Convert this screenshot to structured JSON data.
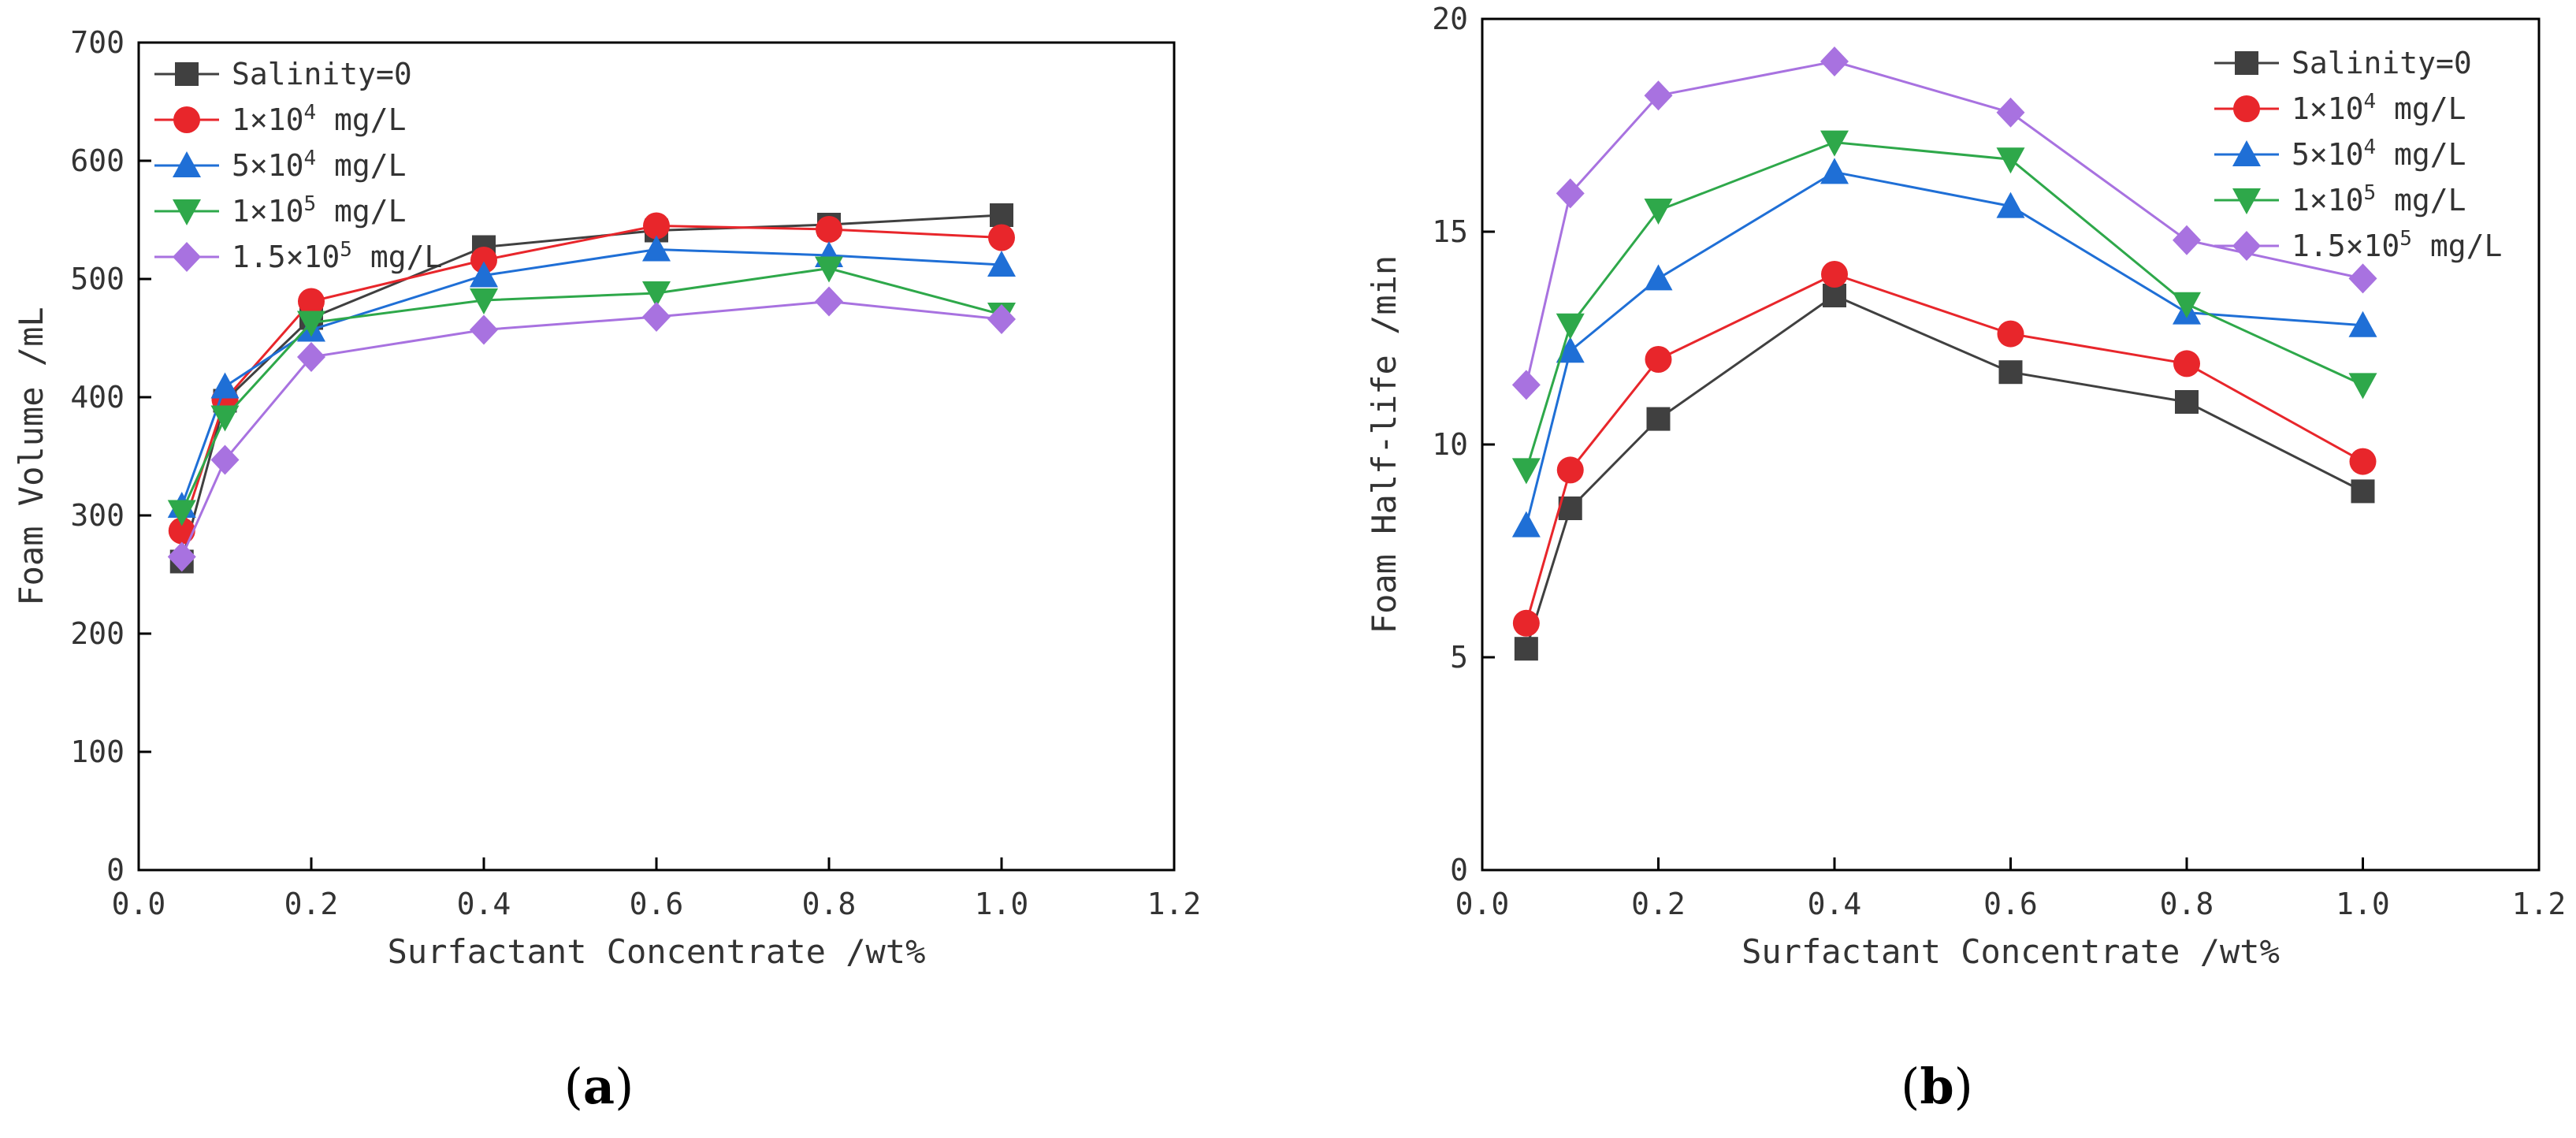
{
  "chart_data": [
    {
      "type": "line",
      "xlabel": "Surfactant Concentrate /wt%",
      "ylabel": "Foam Volume /mL",
      "xlim": [
        0.0,
        1.2
      ],
      "ylim": [
        0,
        700
      ],
      "x_ticks": [
        0.0,
        0.2,
        0.4,
        0.6,
        0.8,
        1.0,
        1.2
      ],
      "x_tick_labels": [
        "0.0",
        "0.2",
        "0.4",
        "0.6",
        "0.8",
        "1.0",
        "1.2"
      ],
      "y_ticks": [
        0,
        100,
        200,
        300,
        400,
        500,
        600,
        700
      ],
      "y_tick_labels": [
        "0",
        "100",
        "200",
        "300",
        "400",
        "500",
        "600",
        "700"
      ],
      "legend_position": "top-left",
      "x": [
        0.05,
        0.1,
        0.2,
        0.4,
        0.6,
        0.8,
        1.0
      ],
      "series": [
        {
          "name": "Salinity=0",
          "label": {
            "base": "Salinity=0"
          },
          "marker": "square",
          "color": "#404040",
          "values": [
            261,
            397,
            467,
            527,
            541,
            546,
            554
          ]
        },
        {
          "name": "1×10⁴ mg/L",
          "label": {
            "base": "1×10",
            "exp": "4",
            "unit": " mg/L"
          },
          "marker": "circle",
          "color": "#e8262b",
          "values": [
            287,
            398,
            481,
            516,
            545,
            542,
            535
          ]
        },
        {
          "name": "5×10⁴ mg/L",
          "label": {
            "base": "5×10",
            "exp": "4",
            "unit": " mg/L"
          },
          "marker": "triangle-up",
          "color": "#1f6fd6",
          "values": [
            308,
            409,
            457,
            503,
            525,
            520,
            512
          ]
        },
        {
          "name": "1×10⁵ mg/L",
          "label": {
            "base": "1×10",
            "exp": "5",
            "unit": " mg/L"
          },
          "marker": "triangle-down",
          "color": "#2ea84a",
          "values": [
            303,
            383,
            463,
            482,
            488,
            509,
            470
          ]
        },
        {
          "name": "1.5×10⁵ mg/L",
          "label": {
            "base": "1.5×10",
            "exp": "5",
            "unit": " mg/L"
          },
          "marker": "diamond",
          "color": "#a872e0",
          "values": [
            265,
            347,
            434,
            457,
            468,
            481,
            466
          ]
        }
      ],
      "panel_label": "(a)"
    },
    {
      "type": "line",
      "xlabel": "Surfactant Concentrate /wt%",
      "ylabel": "Foam Half-life /min",
      "xlim": [
        0.0,
        1.2
      ],
      "ylim": [
        0,
        20
      ],
      "x_ticks": [
        0.0,
        0.2,
        0.4,
        0.6,
        0.8,
        1.0,
        1.2
      ],
      "x_tick_labels": [
        "0.0",
        "0.2",
        "0.4",
        "0.6",
        "0.8",
        "1.0",
        "1.2"
      ],
      "y_ticks": [
        0,
        5,
        10,
        15,
        20
      ],
      "y_tick_labels": [
        "0",
        "5",
        "10",
        "15",
        "20"
      ],
      "legend_position": "top-right",
      "x": [
        0.05,
        0.1,
        0.2,
        0.4,
        0.6,
        0.8,
        1.0
      ],
      "series": [
        {
          "name": "Salinity=0",
          "label": {
            "base": "Salinity=0"
          },
          "marker": "square",
          "color": "#404040",
          "values": [
            5.2,
            8.5,
            10.6,
            13.5,
            11.7,
            11.0,
            8.9
          ]
        },
        {
          "name": "1×10⁴ mg/L",
          "label": {
            "base": "1×10",
            "exp": "4",
            "unit": " mg/L"
          },
          "marker": "circle",
          "color": "#e8262b",
          "values": [
            5.8,
            9.4,
            12.0,
            14.0,
            12.6,
            11.9,
            9.6
          ]
        },
        {
          "name": "5×10⁴ mg/L",
          "label": {
            "base": "5×10",
            "exp": "4",
            "unit": " mg/L"
          },
          "marker": "triangle-up",
          "color": "#1f6fd6",
          "values": [
            8.1,
            12.2,
            13.9,
            16.4,
            15.6,
            13.1,
            12.8
          ]
        },
        {
          "name": "1×10⁵ mg/L",
          "label": {
            "base": "1×10",
            "exp": "5",
            "unit": " mg/L"
          },
          "marker": "triangle-down",
          "color": "#2ea84a",
          "values": [
            9.4,
            12.8,
            15.5,
            17.1,
            16.7,
            13.3,
            11.4
          ]
        },
        {
          "name": "1.5×10⁵ mg/L",
          "label": {
            "base": "1.5×10",
            "exp": "5",
            "unit": " mg/L"
          },
          "marker": "diamond",
          "color": "#a872e0",
          "values": [
            11.4,
            15.9,
            18.2,
            19.0,
            17.8,
            14.8,
            13.9
          ]
        }
      ],
      "panel_label": "(b)"
    }
  ]
}
